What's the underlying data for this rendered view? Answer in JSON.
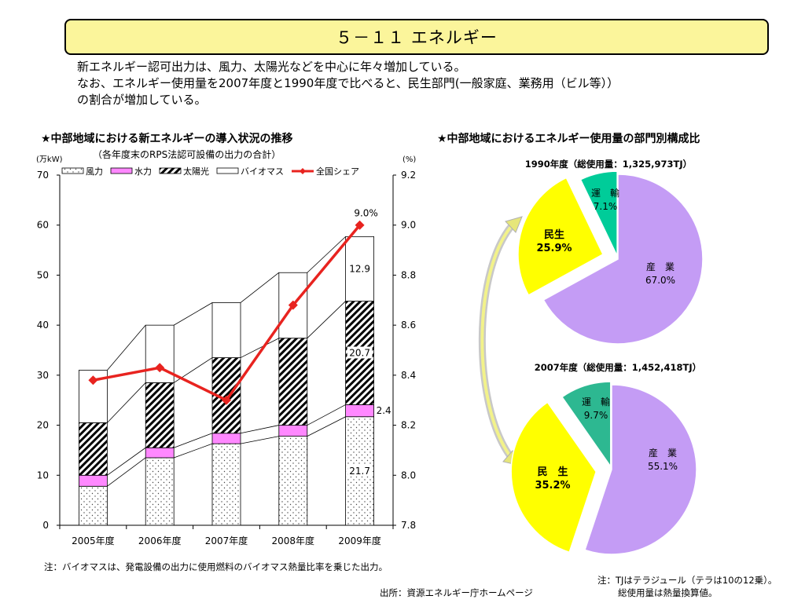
{
  "page": {
    "title": "５－１１ エネルギー",
    "intro": [
      "新エネルギー認可出力は、風力、太陽光などを中心に年々増加している。",
      "なお、エネルギー使用量を2007年度と1990年度で比べると、民生部門(一般家庭、業務用（ビル等））",
      "の割合が増加している。"
    ],
    "left_title": "★中部地域における新エネルギーの導入状況の推移",
    "left_subtitle": "（各年度末のRPS法認可設備の出力の合計）",
    "right_title": "★中部地域におけるエネルギー使用量の部門別構成比",
    "note_left": "注：バイオマスは、発電設備の出力に使用燃料のバイオマス熱量比率を乗じた出力。",
    "source": "出所：資源エネルギー庁ホームページ",
    "note_right_1": "注：TJはテラジュール（テラは10の12乗）。",
    "note_right_2": "総使用量は熱量換算値。"
  },
  "chart_data": [
    {
      "type": "bar",
      "stacked": true,
      "categories": [
        "2005年度",
        "2006年度",
        "2007年度",
        "2008年度",
        "2009年度"
      ],
      "series": [
        {
          "name": "風力",
          "values": [
            7.8,
            13.5,
            16.3,
            17.8,
            21.7
          ],
          "pattern": "dots"
        },
        {
          "name": "水力",
          "values": [
            2.2,
            2.0,
            2.1,
            2.2,
            2.4
          ],
          "color": "#ff88ff"
        },
        {
          "name": "太陽光",
          "values": [
            10.5,
            13.0,
            15.1,
            17.4,
            20.7
          ],
          "pattern": "hatch"
        },
        {
          "name": "バイオマス",
          "values": [
            10.5,
            11.5,
            11.0,
            13.1,
            12.9
          ],
          "color": "#ffffff"
        }
      ],
      "line_series": {
        "name": "全国シェア",
        "values": [
          8.38,
          8.43,
          8.3,
          8.68,
          9.0
        ],
        "color": "#e8231f",
        "axis": "right"
      },
      "data_labels": [
        "21.7",
        "2.4",
        "20.7",
        "12.9",
        "9.0%"
      ],
      "ylabel_left": "(万kW)",
      "ylabel_right": "(%)",
      "ylim": [
        0,
        70
      ],
      "yticks": [
        "0",
        "10",
        "20",
        "30",
        "40",
        "50",
        "60",
        "70"
      ],
      "ylim_right": [
        7.8,
        9.2
      ],
      "yticks_right": [
        "7.8",
        "8.0",
        "8.2",
        "8.4",
        "8.6",
        "8.8",
        "9.0",
        "9.2"
      ],
      "grid": false,
      "legend": "top"
    },
    {
      "type": "pie",
      "title": "1990年度（総使用量：1,325,973TJ）",
      "slices": [
        {
          "name": "産　業",
          "value": 67.0,
          "label": "67.0%",
          "color": "#c49cf5"
        },
        {
          "name": "民生",
          "value": 25.9,
          "label": "25.9%",
          "color": "#ffff00"
        },
        {
          "name": "運　輸",
          "value": 7.1,
          "label": "7.1%",
          "color": "#00cc99"
        }
      ]
    },
    {
      "type": "pie",
      "title": "2007年度（総使用量：1,452,418TJ）",
      "slices": [
        {
          "name": "産　業",
          "value": 55.1,
          "label": "55.1%",
          "color": "#c49cf5"
        },
        {
          "name": "民　生",
          "value": 35.2,
          "label": "35.2%",
          "color": "#ffff00"
        },
        {
          "name": "運　輸",
          "value": 9.7,
          "label": "9.7%",
          "color": "#2db891"
        }
      ]
    }
  ]
}
